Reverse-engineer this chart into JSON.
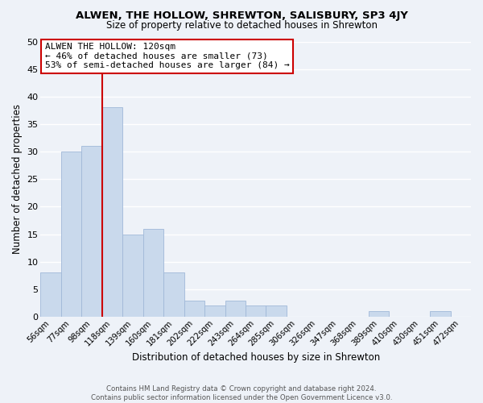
{
  "title1": "ALWEN, THE HOLLOW, SHREWTON, SALISBURY, SP3 4JY",
  "title2": "Size of property relative to detached houses in Shrewton",
  "xlabel": "Distribution of detached houses by size in Shrewton",
  "ylabel": "Number of detached properties",
  "bin_labels": [
    "56sqm",
    "77sqm",
    "98sqm",
    "118sqm",
    "139sqm",
    "160sqm",
    "181sqm",
    "202sqm",
    "222sqm",
    "243sqm",
    "264sqm",
    "285sqm",
    "306sqm",
    "326sqm",
    "347sqm",
    "368sqm",
    "389sqm",
    "410sqm",
    "430sqm",
    "451sqm",
    "472sqm"
  ],
  "bar_heights": [
    8,
    30,
    31,
    38,
    15,
    16,
    8,
    3,
    2,
    3,
    2,
    2,
    0,
    0,
    0,
    0,
    1,
    0,
    0,
    1,
    0
  ],
  "bar_color": "#c9d9ec",
  "bar_edgecolor": "#a0b8d8",
  "vline_x": 3.0,
  "vline_color": "#cc0000",
  "annotation_title": "ALWEN THE HOLLOW: 120sqm",
  "annotation_line1": "← 46% of detached houses are smaller (73)",
  "annotation_line2": "53% of semi-detached houses are larger (84) →",
  "annotation_box_color": "#ffffff",
  "annotation_box_edgecolor": "#cc0000",
  "ylim": [
    0,
    50
  ],
  "yticks": [
    0,
    5,
    10,
    15,
    20,
    25,
    30,
    35,
    40,
    45,
    50
  ],
  "footer1": "Contains HM Land Registry data © Crown copyright and database right 2024.",
  "footer2": "Contains public sector information licensed under the Open Government Licence v3.0.",
  "bg_color": "#eef2f8",
  "grid_color": "#ffffff"
}
